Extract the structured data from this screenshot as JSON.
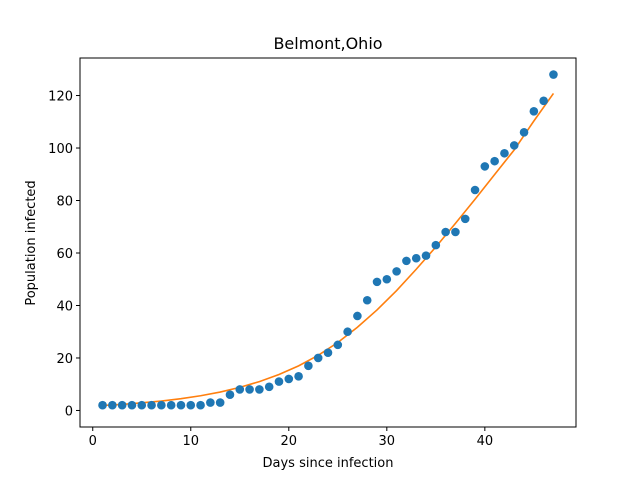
{
  "chart_data": {
    "type": "scatter",
    "title": "Belmont,Ohio",
    "xlabel": "Days since infection",
    "ylabel": "Population infected",
    "xlim": [
      -1.3,
      49.3
    ],
    "ylim": [
      -6.3,
      134.3
    ],
    "xticks": [
      0,
      10,
      20,
      30,
      40
    ],
    "yticks": [
      0,
      20,
      40,
      60,
      80,
      100,
      120
    ],
    "grid": false,
    "legend": "none",
    "series": [
      {
        "kind": "scatter",
        "color": "#1f77b4",
        "x": [
          1,
          2,
          3,
          4,
          5,
          6,
          7,
          8,
          9,
          10,
          11,
          12,
          13,
          14,
          15,
          16,
          17,
          18,
          19,
          20,
          21,
          22,
          23,
          24,
          25,
          26,
          27,
          28,
          29,
          30,
          31,
          32,
          33,
          34,
          35,
          36,
          37,
          38,
          39,
          40,
          41,
          42,
          43,
          44,
          45,
          46,
          47
        ],
        "y": [
          2,
          2,
          2,
          2,
          2,
          2,
          2,
          2,
          2,
          2,
          2,
          3,
          3,
          6,
          8,
          8,
          8,
          9,
          11,
          12,
          13,
          17,
          20,
          22,
          25,
          30,
          36,
          42,
          49,
          50,
          53,
          57,
          58,
          59,
          63,
          68,
          68,
          73,
          84,
          93,
          95,
          98,
          101,
          106,
          114,
          118,
          128
        ]
      },
      {
        "kind": "line",
        "color": "#ff7f0e",
        "x": [
          1,
          3,
          5,
          7,
          9,
          11,
          13,
          15,
          17,
          19,
          21,
          23,
          25,
          27,
          29,
          31,
          33,
          35,
          37,
          39,
          41,
          43,
          45,
          47
        ],
        "y": [
          1.9,
          2.3,
          2.9,
          3.6,
          4.5,
          5.6,
          7.0,
          8.8,
          11.0,
          13.7,
          17.0,
          21.0,
          25.9,
          31.7,
          38.3,
          45.7,
          53.8,
          62.3,
          71.3,
          80.5,
          89.9,
          99.3,
          110.3,
          120.8
        ]
      }
    ]
  }
}
